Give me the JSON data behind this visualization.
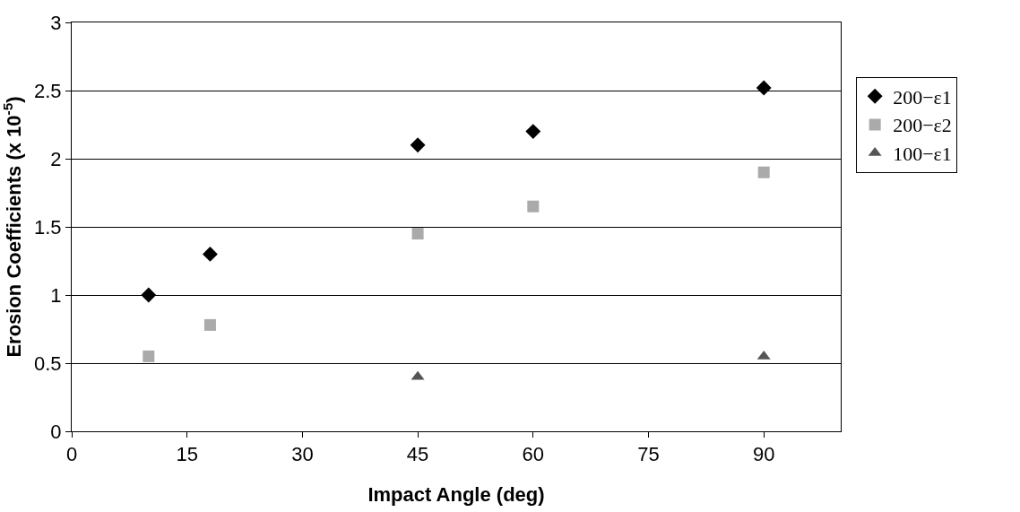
{
  "chart_data": {
    "type": "scatter",
    "xlabel": "Impact Angle (deg)",
    "ylabel": "Erosion Coefficients (x 10$^{-5}$)",
    "xlim": [
      0,
      100
    ],
    "xticks": [
      0,
      15,
      30,
      45,
      60,
      75,
      90
    ],
    "ylim": [
      0,
      3
    ],
    "yticks": [
      0,
      0.5,
      1,
      1.5,
      2,
      2.5,
      3
    ],
    "grid": "y",
    "legend": "right",
    "series": [
      {
        "name": "200−ε1",
        "color": "#000000",
        "marker": "diamond",
        "x": [
          10,
          18,
          45,
          60,
          90
        ],
        "values": [
          1.0,
          1.3,
          2.1,
          2.2,
          2.52
        ]
      },
      {
        "name": "200−ε2",
        "color": "#aaaaaa",
        "marker": "square",
        "x": [
          10,
          18,
          45,
          60,
          90
        ],
        "values": [
          0.55,
          0.78,
          1.45,
          1.65,
          1.9
        ]
      },
      {
        "name": "100−ε1",
        "color": "#555555",
        "marker": "triangle",
        "x": [
          45,
          90
        ],
        "values": [
          0.4,
          0.55
        ]
      }
    ]
  }
}
